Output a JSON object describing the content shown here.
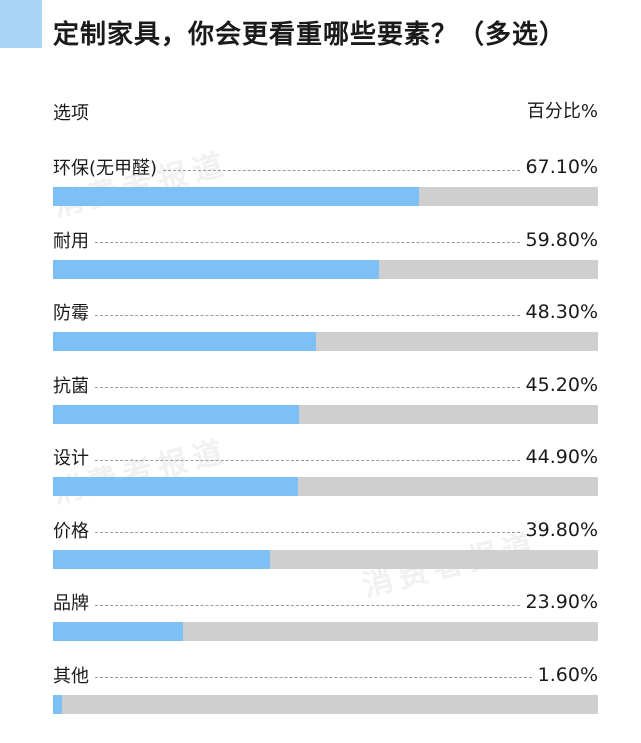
{
  "title": "定制家具，你会更看重哪些要素？（多选）",
  "header": {
    "option_label": "选项",
    "percent_label": "百分比%"
  },
  "watermark_text": "消费者报道",
  "colors": {
    "title_marker": "#a9d6f7",
    "bar_fill": "#7cc0f5",
    "bar_track": "#cfcfcf"
  },
  "chart_data": {
    "type": "bar",
    "orientation": "horizontal",
    "title": "定制家具，你会更看重哪些要素？（多选）",
    "xlabel": "百分比%",
    "ylabel": "选项",
    "xlim": [
      0,
      100
    ],
    "grid": false,
    "categories": [
      "环保(无甲醛)",
      "耐用",
      "防霉",
      "抗菌",
      "设计",
      "价格",
      "品牌",
      "其他"
    ],
    "values": [
      67.1,
      59.8,
      48.3,
      45.2,
      44.9,
      39.8,
      23.9,
      1.6
    ],
    "value_labels": [
      "67.10%",
      "59.80%",
      "48.30%",
      "45.20%",
      "44.90%",
      "39.80%",
      "23.90%",
      "1.60%"
    ]
  }
}
